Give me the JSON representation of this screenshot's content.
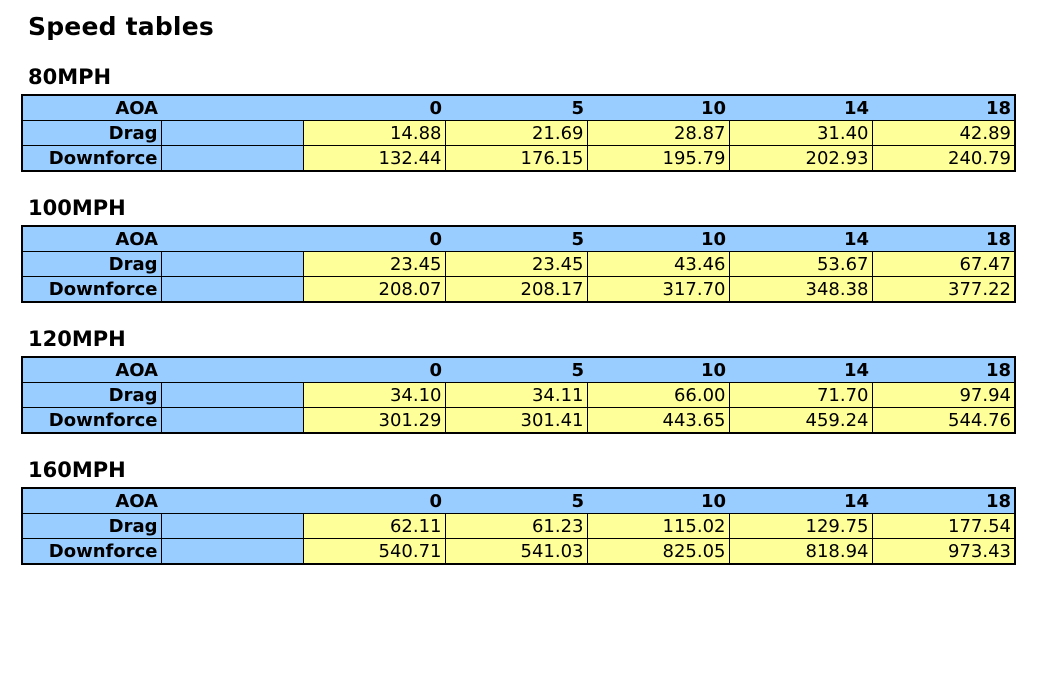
{
  "title": "Speed tables",
  "tables": [
    {
      "heading": "80MPH",
      "corner_label": "AOA",
      "aoa": [
        "0",
        "5",
        "10",
        "14",
        "18"
      ],
      "rows": [
        {
          "label": "Drag",
          "values": [
            "14.88",
            "21.69",
            "28.87",
            "31.40",
            "42.89"
          ]
        },
        {
          "label": "Downforce",
          "values": [
            "132.44",
            "176.15",
            "195.79",
            "202.93",
            "240.79"
          ]
        }
      ]
    },
    {
      "heading": "100MPH",
      "corner_label": "AOA",
      "aoa": [
        "0",
        "5",
        "10",
        "14",
        "18"
      ],
      "rows": [
        {
          "label": "Drag",
          "values": [
            "23.45",
            "23.45",
            "43.46",
            "53.67",
            "67.47"
          ]
        },
        {
          "label": "Downforce",
          "values": [
            "208.07",
            "208.17",
            "317.70",
            "348.38",
            "377.22"
          ]
        }
      ]
    },
    {
      "heading": "120MPH",
      "corner_label": "AOA",
      "aoa": [
        "0",
        "5",
        "10",
        "14",
        "18"
      ],
      "rows": [
        {
          "label": "Drag",
          "values": [
            "34.10",
            "34.11",
            "66.00",
            "71.70",
            "97.94"
          ]
        },
        {
          "label": "Downforce",
          "values": [
            "301.29",
            "301.41",
            "443.65",
            "459.24",
            "544.76"
          ]
        }
      ]
    },
    {
      "heading": "160MPH",
      "corner_label": "AOA",
      "aoa": [
        "0",
        "5",
        "10",
        "14",
        "18"
      ],
      "rows": [
        {
          "label": "Drag",
          "values": [
            "62.11",
            "61.23",
            "115.02",
            "129.75",
            "177.54"
          ]
        },
        {
          "label": "Downforce",
          "values": [
            "540.71",
            "541.03",
            "825.05",
            "818.94",
            "973.43"
          ]
        }
      ]
    }
  ],
  "colors": {
    "header_blue": "#99CCFF",
    "value_yellow": "#FFFF99",
    "border": "#000000"
  }
}
